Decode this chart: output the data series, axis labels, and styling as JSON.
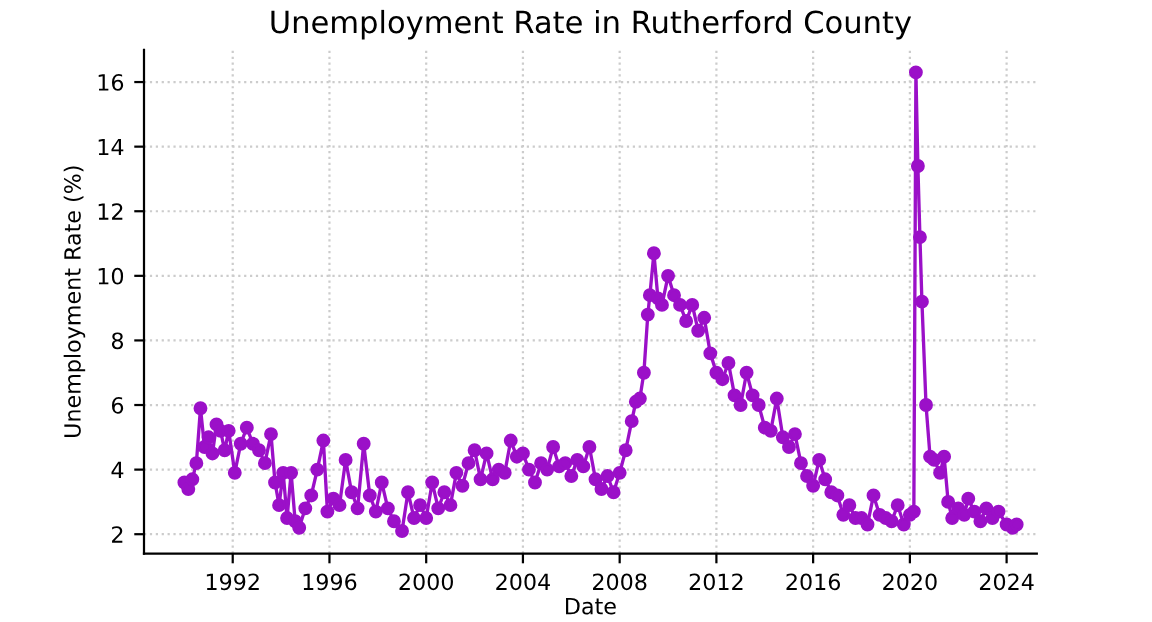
{
  "chart_data": {
    "type": "line",
    "title": "Unemployment Rate in Rutherford County",
    "xlabel": "Date",
    "ylabel": "Unemployment Rate (%)",
    "x": [
      "1990-01",
      "1990-03",
      "1990-05",
      "1990-07",
      "1990-09",
      "1990-11",
      "1991-01",
      "1991-03",
      "1991-05",
      "1991-07",
      "1991-09",
      "1991-11",
      "1992-02",
      "1992-05",
      "1992-08",
      "1992-11",
      "1993-02",
      "1993-05",
      "1993-08",
      "1993-10",
      "1993-12",
      "1994-02",
      "1994-04",
      "1994-06",
      "1994-08",
      "1994-10",
      "1995-01",
      "1995-04",
      "1995-07",
      "1995-10",
      "1995-12",
      "1996-03",
      "1996-06",
      "1996-09",
      "1996-12",
      "1997-03",
      "1997-06",
      "1997-09",
      "1997-12",
      "1998-03",
      "1998-06",
      "1998-09",
      "1999-01",
      "1999-04",
      "1999-07",
      "1999-10",
      "2000-01",
      "2000-04",
      "2000-07",
      "2000-10",
      "2001-01",
      "2001-04",
      "2001-07",
      "2001-10",
      "2002-01",
      "2002-04",
      "2002-07",
      "2002-10",
      "2003-01",
      "2003-04",
      "2003-07",
      "2003-10",
      "2004-01",
      "2004-04",
      "2004-07",
      "2004-10",
      "2005-01",
      "2005-04",
      "2005-07",
      "2005-10",
      "2006-01",
      "2006-04",
      "2006-07",
      "2006-10",
      "2007-01",
      "2007-04",
      "2007-07",
      "2007-10",
      "2008-01",
      "2008-04",
      "2008-07",
      "2008-09",
      "2008-11",
      "2009-01",
      "2009-03",
      "2009-04",
      "2009-06",
      "2009-08",
      "2009-10",
      "2010-01",
      "2010-04",
      "2010-07",
      "2010-10",
      "2011-01",
      "2011-04",
      "2011-07",
      "2011-10",
      "2012-01",
      "2012-04",
      "2012-07",
      "2012-10",
      "2013-01",
      "2013-04",
      "2013-07",
      "2013-10",
      "2014-01",
      "2014-04",
      "2014-07",
      "2014-10",
      "2015-01",
      "2015-04",
      "2015-07",
      "2015-10",
      "2016-01",
      "2016-04",
      "2016-07",
      "2016-10",
      "2017-01",
      "2017-04",
      "2017-07",
      "2017-10",
      "2018-01",
      "2018-04",
      "2018-07",
      "2018-10",
      "2019-01",
      "2019-04",
      "2019-07",
      "2019-10",
      "2020-01",
      "2020-03",
      "2020-04",
      "2020-05",
      "2020-06",
      "2020-07",
      "2020-09",
      "2020-11",
      "2021-01",
      "2021-04",
      "2021-06",
      "2021-08",
      "2021-10",
      "2022-01",
      "2022-04",
      "2022-06",
      "2022-09",
      "2022-12",
      "2023-03",
      "2023-06",
      "2023-09",
      "2024-01",
      "2024-04",
      "2024-06"
    ],
    "series": [
      {
        "color": "#9b10c8",
        "values": [
          3.6,
          3.4,
          3.7,
          4.2,
          5.9,
          4.7,
          5.0,
          4.5,
          5.4,
          5.2,
          4.6,
          5.2,
          3.9,
          4.8,
          5.3,
          4.8,
          4.6,
          4.2,
          5.1,
          3.6,
          2.9,
          3.9,
          2.5,
          3.9,
          2.4,
          2.2,
          2.8,
          3.2,
          4.0,
          4.9,
          2.7,
          3.1,
          2.9,
          4.3,
          3.3,
          2.8,
          4.8,
          3.2,
          2.7,
          3.6,
          2.8,
          2.4,
          2.1,
          3.3,
          2.5,
          2.9,
          2.5,
          3.6,
          2.8,
          3.3,
          2.9,
          3.9,
          3.5,
          4.2,
          4.6,
          3.7,
          4.5,
          3.7,
          4.0,
          3.9,
          4.9,
          4.4,
          4.5,
          4.0,
          3.6,
          4.2,
          4.0,
          4.7,
          4.1,
          4.2,
          3.8,
          4.3,
          4.1,
          4.7,
          3.7,
          3.4,
          3.8,
          3.3,
          3.9,
          4.6,
          5.5,
          6.1,
          6.2,
          7.0,
          8.8,
          9.4,
          10.7,
          9.3,
          9.1,
          10.0,
          9.4,
          9.1,
          8.6,
          9.1,
          8.3,
          8.7,
          7.6,
          7.0,
          6.8,
          7.3,
          6.3,
          6.0,
          7.0,
          6.3,
          6.0,
          5.3,
          5.2,
          6.2,
          5.0,
          4.7,
          5.1,
          4.2,
          3.8,
          3.5,
          4.3,
          3.7,
          3.3,
          3.2,
          2.6,
          2.9,
          2.5,
          2.5,
          2.3,
          3.2,
          2.6,
          2.5,
          2.4,
          2.9,
          2.3,
          2.6,
          2.7,
          16.3,
          13.4,
          11.2,
          9.2,
          6.0,
          4.4,
          4.3,
          3.9,
          4.4,
          3.0,
          2.5,
          2.8,
          2.6,
          3.1,
          2.7,
          2.4,
          2.8,
          2.5,
          2.7,
          2.3,
          2.2,
          2.3
        ]
      }
    ],
    "xlim": [
      "1988-05",
      "2025-04"
    ],
    "xticks": [
      {
        "value": "1992",
        "label": "1992"
      },
      {
        "value": "1996",
        "label": "1996"
      },
      {
        "value": "2000",
        "label": "2000"
      },
      {
        "value": "2004",
        "label": "2004"
      },
      {
        "value": "2008",
        "label": "2008"
      },
      {
        "value": "2012",
        "label": "2012"
      },
      {
        "value": "2016",
        "label": "2016"
      },
      {
        "value": "2020",
        "label": "2020"
      },
      {
        "value": "2024",
        "label": "2024"
      }
    ],
    "ylim": [
      1.4,
      17
    ],
    "yticks": [
      2,
      4,
      6,
      8,
      10,
      12,
      14,
      16
    ],
    "grid": true,
    "marker": "circle",
    "line_style": "solid"
  }
}
